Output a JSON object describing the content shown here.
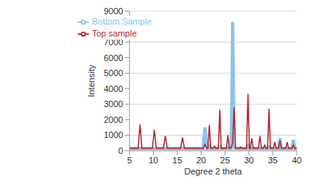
{
  "chart_data": {
    "type": "line",
    "x_label": "Degree 2 theta",
    "y_label": "Intensity",
    "x": [
      5,
      6.8,
      7.2,
      7.6,
      9.8,
      10.2,
      10.6,
      12.1,
      12.5,
      12.9,
      15.7,
      16.1,
      16.5,
      20.4,
      20.8,
      21.2,
      21.4,
      21.7,
      22.0,
      22.5,
      22.8,
      23.1,
      23.6,
      23.9,
      24.2,
      25.3,
      25.6,
      25.9,
      26.3,
      26.6,
      26.9,
      27.2,
      28.0,
      28.2,
      28.4,
      29.5,
      29.8,
      30.1,
      30.3,
      30.6,
      30.9,
      32.0,
      32.3,
      32.6,
      33.0,
      33.3,
      33.6,
      33.9,
      34.2,
      34.5,
      35.1,
      35.4,
      35.7,
      36.2,
      36.5,
      36.8,
      37.7,
      38.0,
      38.3,
      39.0,
      39.3,
      39.6,
      40
    ],
    "series": [
      {
        "name": "Bottom Sample",
        "color": "#8dc3ea",
        "values": [
          150,
          150,
          150,
          150,
          150,
          150,
          150,
          150,
          150,
          150,
          150,
          150,
          150,
          150,
          1500,
          150,
          150,
          300,
          150,
          150,
          150,
          150,
          150,
          250,
          150,
          150,
          200,
          150,
          150,
          8300,
          300,
          150,
          150,
          150,
          150,
          150,
          300,
          150,
          150,
          150,
          150,
          150,
          150,
          150,
          150,
          150,
          150,
          150,
          250,
          150,
          150,
          150,
          150,
          150,
          800,
          150,
          150,
          150,
          150,
          150,
          700,
          150,
          150
        ]
      },
      {
        "name": "Top sample",
        "color": "#b2272e",
        "values": [
          150,
          150,
          1700,
          150,
          150,
          1350,
          150,
          150,
          950,
          150,
          150,
          850,
          150,
          150,
          400,
          150,
          150,
          1650,
          150,
          150,
          300,
          150,
          150,
          2650,
          150,
          150,
          1000,
          150,
          200,
          500,
          2800,
          150,
          150,
          250,
          150,
          150,
          3650,
          150,
          150,
          800,
          150,
          150,
          950,
          150,
          150,
          350,
          150,
          150,
          2700,
          150,
          150,
          550,
          150,
          150,
          650,
          150,
          150,
          550,
          150,
          150,
          350,
          150,
          150
        ]
      }
    ],
    "xlim": [
      5,
      40
    ],
    "xticks": [
      5,
      10,
      15,
      20,
      25,
      30,
      35,
      40
    ],
    "ylim": [
      0,
      9000
    ],
    "yticks": [
      0,
      1000,
      2000,
      3000,
      4000,
      5000,
      6000,
      7000,
      8000,
      9000
    ],
    "grid": true,
    "legend": "top left"
  }
}
